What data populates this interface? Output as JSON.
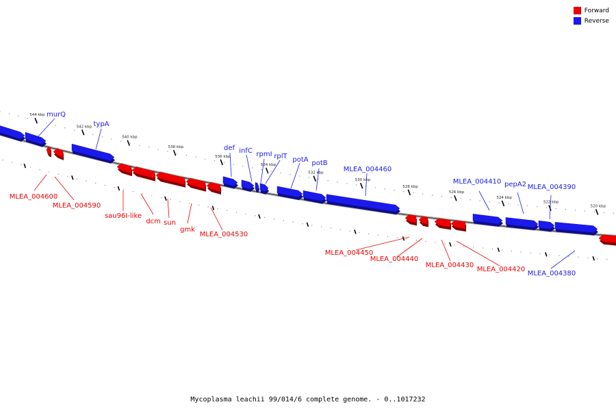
{
  "legend": {
    "forward_label": "Forward",
    "reverse_label": "Reverse",
    "forward_color": "#ee0000",
    "reverse_color": "#1a1aee"
  },
  "caption": "Mycoplasma leachii 99/014/6 complete genome. - 0..1017232",
  "axis_ticks": [
    "544 kbp",
    "542 kbp",
    "540 kbp",
    "538 kbp",
    "536 kbp",
    "534 kbp",
    "532 kbp",
    "530 kbp",
    "528 kbp",
    "526 kbp",
    "524 kbp",
    "522 kbp",
    "520 kbp"
  ],
  "genes": [
    {
      "name": "",
      "strand": "reverse"
    },
    {
      "name": "murQ",
      "strand": "reverse"
    },
    {
      "name": "typA",
      "strand": "reverse"
    },
    {
      "name": "MLEA_004600",
      "strand": "forward"
    },
    {
      "name": "MLEA_004590",
      "strand": "forward"
    },
    {
      "name": "sau96I-like",
      "strand": "forward"
    },
    {
      "name": "dcm",
      "strand": "forward"
    },
    {
      "name": "sun",
      "strand": "forward"
    },
    {
      "name": "gmk",
      "strand": "forward"
    },
    {
      "name": "MLEA_004530",
      "strand": "forward"
    },
    {
      "name": "def",
      "strand": "reverse"
    },
    {
      "name": "infC",
      "strand": "reverse"
    },
    {
      "name": "rpmI",
      "strand": "reverse"
    },
    {
      "name": "rplT",
      "strand": "reverse"
    },
    {
      "name": "potA",
      "strand": "reverse"
    },
    {
      "name": "potB",
      "strand": "reverse"
    },
    {
      "name": "MLEA_004460",
      "strand": "reverse"
    },
    {
      "name": "MLEA_004450",
      "strand": "forward"
    },
    {
      "name": "MLEA_004440",
      "strand": "forward"
    },
    {
      "name": "MLEA_004430",
      "strand": "forward"
    },
    {
      "name": "MLEA_004420",
      "strand": "forward"
    },
    {
      "name": "MLEA_004410",
      "strand": "reverse"
    },
    {
      "name": "pepA2",
      "strand": "reverse"
    },
    {
      "name": "MLEA_004390",
      "strand": "reverse"
    },
    {
      "name": "MLEA_004380",
      "strand": "reverse"
    },
    {
      "name": "",
      "strand": "forward"
    }
  ]
}
